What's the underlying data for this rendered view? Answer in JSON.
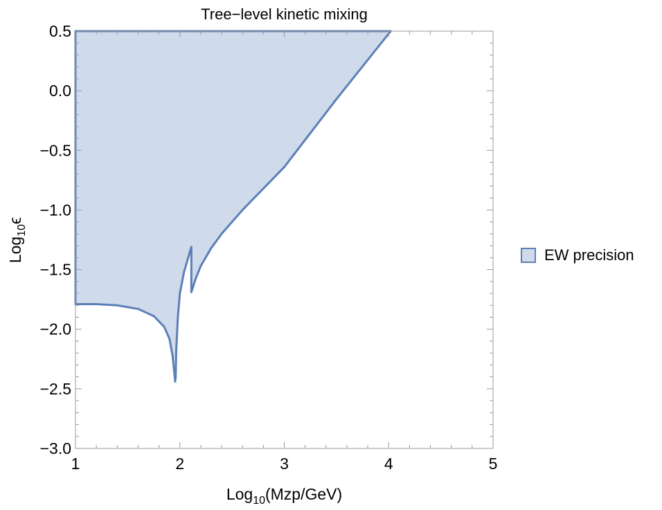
{
  "chart_data": {
    "type": "area",
    "title": "Tree−level kinetic mixing",
    "xlabel": {
      "prefix": "Log",
      "sub": "10",
      "suffix": "(Mzp/GeV)"
    },
    "ylabel": {
      "prefix": "Log",
      "sub": "10",
      "suffix": "ϵ"
    },
    "xlim": [
      1,
      5
    ],
    "ylim": [
      -3.0,
      0.5
    ],
    "x_ticks": [
      1,
      2,
      3,
      4,
      5
    ],
    "x_tick_labels": [
      "1",
      "2",
      "3",
      "4",
      "5"
    ],
    "y_ticks": [
      -3.0,
      -2.5,
      -2.0,
      -1.5,
      -1.0,
      -0.5,
      0.0,
      0.5
    ],
    "y_tick_labels": [
      "−3.0",
      "−2.5",
      "−2.0",
      "−1.5",
      "−1.0",
      "−0.5",
      "0.0",
      "0.5"
    ],
    "grid": false,
    "legend_position": "right",
    "series": [
      {
        "name": "EW precision",
        "fill_color": "#cfdaea",
        "line_color": "#5b7fb8",
        "boundary": [
          {
            "x": 1.0,
            "y": 0.5
          },
          {
            "x": 1.0,
            "y": -1.79
          },
          {
            "x": 1.2,
            "y": -1.79
          },
          {
            "x": 1.4,
            "y": -1.8
          },
          {
            "x": 1.6,
            "y": -1.83
          },
          {
            "x": 1.75,
            "y": -1.89
          },
          {
            "x": 1.85,
            "y": -1.98
          },
          {
            "x": 1.9,
            "y": -2.08
          },
          {
            "x": 1.93,
            "y": -2.22
          },
          {
            "x": 1.955,
            "y": -2.44
          },
          {
            "x": 1.96,
            "y": -2.4
          },
          {
            "x": 1.965,
            "y": -2.18
          },
          {
            "x": 1.98,
            "y": -1.91
          },
          {
            "x": 2.0,
            "y": -1.7
          },
          {
            "x": 2.04,
            "y": -1.52
          },
          {
            "x": 2.08,
            "y": -1.4
          },
          {
            "x": 2.11,
            "y": -1.31
          },
          {
            "x": 2.11,
            "y": -1.69
          },
          {
            "x": 2.15,
            "y": -1.58
          },
          {
            "x": 2.2,
            "y": -1.47
          },
          {
            "x": 2.3,
            "y": -1.32
          },
          {
            "x": 2.4,
            "y": -1.2
          },
          {
            "x": 2.6,
            "y": -1.0
          },
          {
            "x": 3.0,
            "y": -0.64
          },
          {
            "x": 3.5,
            "y": -0.07
          },
          {
            "x": 4.02,
            "y": 0.5
          }
        ]
      }
    ]
  }
}
